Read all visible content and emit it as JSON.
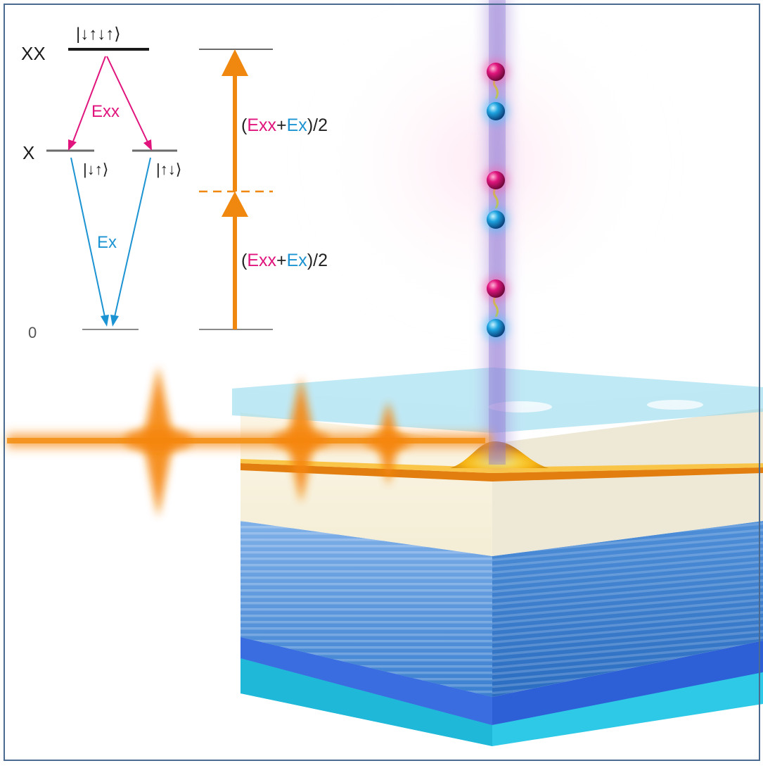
{
  "levels": {
    "xx_label": "XX",
    "x_label": "X",
    "ground_label": "0",
    "xx_state": "|↓↑↓↑⟩",
    "x_state_left": "|↓↑⟩",
    "x_state_right": "|↑↓⟩"
  },
  "transitions": {
    "exx_label": "Exx",
    "ex_label": "Ex",
    "tpa_upper": {
      "open": "(",
      "a": "Exx",
      "plus": "+",
      "b": "Ex",
      "close": ")/2"
    },
    "tpa_lower": {
      "open": "(",
      "a": "Exx",
      "plus": "+",
      "b": "Ex",
      "close": ")/2"
    }
  },
  "colors": {
    "exx": "#e0147c",
    "ex": "#1c93d2",
    "pump": "#f0880f",
    "electron": "#e0157d",
    "hole": "#1ea4e0",
    "frame": "#4a6a90"
  },
  "icons": {
    "electron": "electron-sphere",
    "hole": "hole-sphere",
    "pulse": "laser-pulse"
  }
}
